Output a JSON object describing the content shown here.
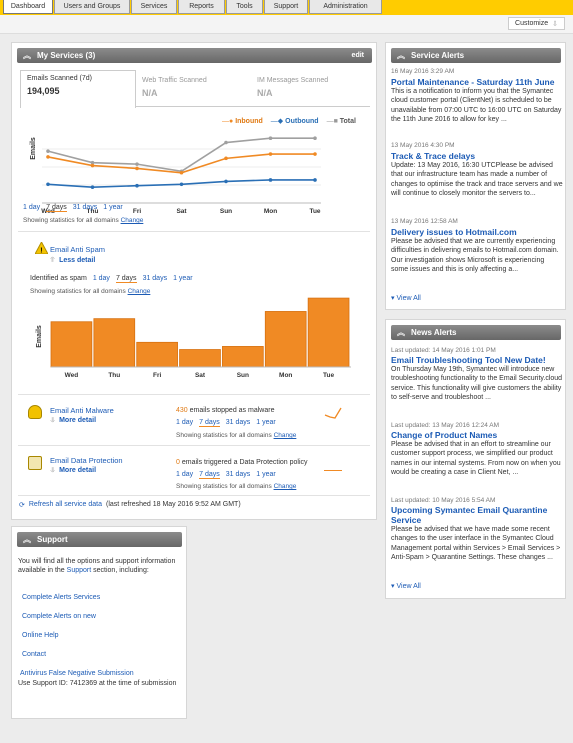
{
  "tabs": [
    {
      "label": "Dashboard"
    },
    {
      "label": "Users and Groups"
    },
    {
      "label": "Services"
    },
    {
      "label": "Reports"
    },
    {
      "label": "Tools"
    },
    {
      "label": "Support"
    },
    {
      "label": "Administration"
    }
  ],
  "toolbar": {
    "customize": "Customize"
  },
  "my_services": {
    "title": "My Services (3)",
    "edit": "edit",
    "stat_tabs": [
      {
        "label": "Emails Scanned (7d)",
        "value": "194,095"
      },
      {
        "label": "Web Traffic Scanned",
        "value": "N/A"
      },
      {
        "label": "IM Messages Scanned",
        "value": "N/A"
      }
    ],
    "legend": {
      "inbound": "Inbound",
      "outbound": "Outbound",
      "total": "Total"
    },
    "ylabel": "Emails",
    "day_links": [
      "1 day",
      "7 days",
      "31 days",
      "1 year"
    ],
    "showing": "Showing statistics for all domains",
    "change": "Change",
    "anti_spam": {
      "title": "Email Anti Spam",
      "detail": "Less detail",
      "identified": "Identified as spam",
      "showing": "Showing statistics for all domains",
      "change": "Change"
    },
    "anti_malware": {
      "title": "Email Anti Malware",
      "detail": "More detail",
      "count": "430",
      "count_text": "emails stopped as malware",
      "showing": "Showing statistics for all domains",
      "change": "Change"
    },
    "data_protection": {
      "title": "Email Data Protection",
      "detail": "More detail",
      "count": "0",
      "count_text": "emails triggered a Data Protection policy",
      "showing": "Showing statistics for all domains",
      "change": "Change"
    },
    "refresh": "Refresh all service data",
    "refresh_note": "(last refreshed 18 May 2016 9:52 AM GMT)"
  },
  "chart_data": [
    {
      "type": "line",
      "x": [
        "Wed",
        "Thu",
        "Fri",
        "Sat",
        "Sun",
        "Mon",
        "Tue"
      ],
      "ylabel": "Emails",
      "series": [
        {
          "name": "Inbound",
          "color": "#f08a24",
          "values": [
            32,
            26,
            24,
            21,
            31,
            34,
            34
          ]
        },
        {
          "name": "Outbound",
          "color": "#2a6fb5",
          "values": [
            13,
            11,
            12,
            13,
            15,
            16,
            16
          ]
        },
        {
          "name": "Total",
          "color": "#a0a0a0",
          "values": [
            36,
            28,
            27,
            22,
            42,
            45,
            45
          ]
        }
      ]
    },
    {
      "type": "bar",
      "categories": [
        "Wed",
        "Thu",
        "Fri",
        "Sat",
        "Sun",
        "Mon",
        "Tue"
      ],
      "ylabel": "Emails",
      "values": [
        44,
        47,
        24,
        17,
        20,
        54,
        67
      ],
      "color": "#f08a24"
    }
  ],
  "support": {
    "title": "Support",
    "intro": "You will find all the options and support information available in the",
    "intro_link": "Support",
    "intro_end": "section, including:",
    "links": [
      "Complete Alerts Services",
      "Complete Alerts on new",
      "Online Help",
      "Contact",
      "Antivirus False Negative Submission"
    ],
    "support_id": "Use Support ID: 7412369 at the time of submission"
  },
  "service_alerts": {
    "title": "Service Alerts",
    "view_all": "View All",
    "items": [
      {
        "date": "16 May 2016 3:29 AM",
        "title": "Portal Maintenance - Saturday 11th June",
        "body": "This is a notification to inform you that the Symantec cloud customer portal (ClientNet) is scheduled to be unavailable from 07:00 UTC to 16:00 UTC on Saturday the 11th June 2016 to allow for key ..."
      },
      {
        "date": "13 May 2016 4:30 PM",
        "title": "Track & Trace delays",
        "body": "Update: 13 May 2016, 16:30 UTCPlease be advised that our infrastructure team has made a number of changes to optimise the track and trace servers and we will continue to closely monitor the servers to..."
      },
      {
        "date": "13 May 2016 12:58 AM",
        "title": "Delivery issues to Hotmail.com",
        "body": "Please be advised that we are currently experiencing difficulties in delivering emails to Hotmail.com domain. Our investigation shows Microsoft is experiencing some issues and this is only affecting a..."
      }
    ]
  },
  "news_alerts": {
    "title": "News Alerts",
    "view_all": "View All",
    "items": [
      {
        "date": "Last updated: 14 May 2016 1:01 PM",
        "title": "Email Troubleshooting Tool New Date!",
        "body": "On Thursday May 19th, Symantec will introduce new troubleshooting functionality to the Email Security.cloud service. This functionality will give customers the ability to self-serve and troubleshoot ..."
      },
      {
        "date": "Last updated: 13 May 2016 12:24 AM",
        "title": "Change of Product Names",
        "body": "Please be advised that in an effort to streamline our customer support process, we simplified our product names in our internal systems. From now on when you would be creating a case in Client Net, ..."
      },
      {
        "date": "Last updated: 10 May 2016 5:54 AM",
        "title": "Upcoming Symantec Email Quarantine Service",
        "body": "Please be advised that we have made some recent changes to the user interface in the Symantec Cloud Management portal within Services > Email Services > Anti-Spam > Quarantine Settings. These changes ..."
      }
    ]
  }
}
